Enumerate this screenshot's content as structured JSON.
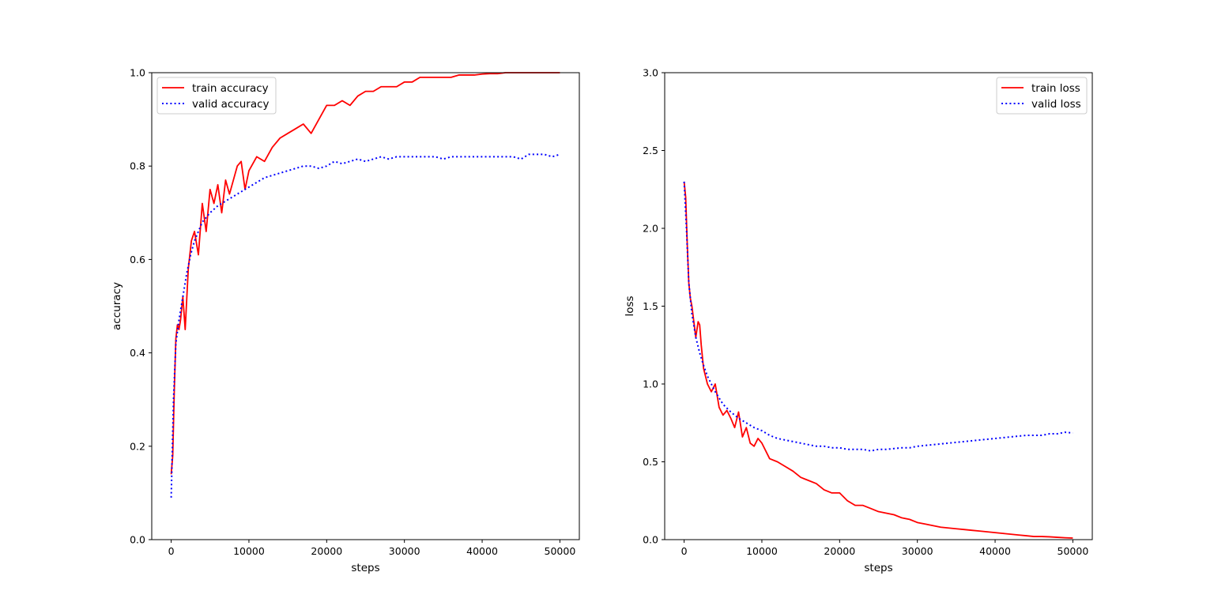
{
  "chart_data": [
    {
      "type": "line",
      "xlabel": "steps",
      "ylabel": "accuracy",
      "xlim": [
        -2500,
        52500
      ],
      "ylim": [
        0,
        1.0
      ],
      "xticks": [
        0,
        10000,
        20000,
        30000,
        40000,
        50000
      ],
      "yticks": [
        0.0,
        0.2,
        0.4,
        0.6,
        0.8,
        1.0
      ],
      "xtick_labels": [
        "0",
        "10000",
        "20000",
        "30000",
        "40000",
        "50000"
      ],
      "ytick_labels": [
        "0.0",
        "0.2",
        "0.4",
        "0.6",
        "0.8",
        "1.0"
      ],
      "legend_position": "top-left",
      "series": [
        {
          "name": "train accuracy",
          "color": "#ff0000",
          "style": "solid",
          "x": [
            0,
            200,
            400,
            600,
            800,
            1000,
            1200,
            1500,
            1800,
            2200,
            2600,
            3000,
            3500,
            4000,
            4500,
            5000,
            5500,
            6000,
            6500,
            7000,
            7500,
            8000,
            8500,
            9000,
            9500,
            10000,
            11000,
            12000,
            13000,
            14000,
            15000,
            16000,
            17000,
            18000,
            19000,
            20000,
            21000,
            22000,
            23000,
            24000,
            25000,
            26000,
            27000,
            28000,
            29000,
            30000,
            31000,
            32000,
            33000,
            34000,
            35000,
            36000,
            37000,
            38000,
            39000,
            40000,
            41000,
            42000,
            43000,
            44000,
            45000,
            46000,
            47000,
            48000,
            49000,
            50000
          ],
          "values": [
            0.14,
            0.18,
            0.32,
            0.43,
            0.46,
            0.45,
            0.47,
            0.52,
            0.45,
            0.58,
            0.64,
            0.66,
            0.61,
            0.72,
            0.66,
            0.75,
            0.72,
            0.76,
            0.7,
            0.77,
            0.74,
            0.77,
            0.8,
            0.81,
            0.75,
            0.79,
            0.82,
            0.81,
            0.84,
            0.86,
            0.87,
            0.88,
            0.89,
            0.87,
            0.9,
            0.93,
            0.93,
            0.94,
            0.93,
            0.95,
            0.96,
            0.96,
            0.97,
            0.97,
            0.97,
            0.98,
            0.98,
            0.99,
            0.99,
            0.99,
            0.99,
            0.99,
            0.995,
            0.995,
            0.995,
            0.997,
            0.998,
            0.998,
            1.0,
            1.0,
            1.0,
            1.0,
            1.0,
            1.0,
            1.0,
            1.0
          ]
        },
        {
          "name": "valid accuracy",
          "color": "#0000ff",
          "style": "dotted",
          "x": [
            0,
            300,
            600,
            1000,
            1500,
            2000,
            2500,
            3000,
            3500,
            4000,
            5000,
            6000,
            7000,
            8000,
            9000,
            10000,
            11000,
            12000,
            13000,
            14000,
            15000,
            16000,
            17000,
            18000,
            19000,
            20000,
            21000,
            22000,
            23000,
            24000,
            25000,
            26000,
            27000,
            28000,
            29000,
            30000,
            32000,
            34000,
            35000,
            36000,
            38000,
            40000,
            42000,
            44000,
            45000,
            46000,
            48000,
            49000,
            50000
          ],
          "values": [
            0.09,
            0.3,
            0.42,
            0.47,
            0.52,
            0.57,
            0.61,
            0.64,
            0.66,
            0.68,
            0.7,
            0.715,
            0.725,
            0.735,
            0.745,
            0.755,
            0.765,
            0.775,
            0.78,
            0.785,
            0.79,
            0.795,
            0.8,
            0.8,
            0.795,
            0.8,
            0.81,
            0.805,
            0.81,
            0.815,
            0.81,
            0.815,
            0.82,
            0.815,
            0.82,
            0.82,
            0.82,
            0.82,
            0.815,
            0.82,
            0.82,
            0.82,
            0.82,
            0.82,
            0.815,
            0.825,
            0.825,
            0.82,
            0.825
          ]
        }
      ]
    },
    {
      "type": "line",
      "xlabel": "steps",
      "ylabel": "loss",
      "xlim": [
        -2500,
        52500
      ],
      "ylim": [
        0,
        3.0
      ],
      "xticks": [
        0,
        10000,
        20000,
        30000,
        40000,
        50000
      ],
      "yticks": [
        0.0,
        0.5,
        1.0,
        1.5,
        2.0,
        2.5,
        3.0
      ],
      "xtick_labels": [
        "0",
        "10000",
        "20000",
        "30000",
        "40000",
        "50000"
      ],
      "ytick_labels": [
        "0.0",
        "0.5",
        "1.0",
        "1.5",
        "2.0",
        "2.5",
        "3.0"
      ],
      "legend_position": "top-right",
      "series": [
        {
          "name": "train loss",
          "color": "#ff0000",
          "style": "solid",
          "x": [
            0,
            200,
            400,
            600,
            800,
            1000,
            1200,
            1500,
            1800,
            2000,
            2200,
            2500,
            3000,
            3500,
            4000,
            4500,
            5000,
            5500,
            6000,
            6500,
            7000,
            7500,
            8000,
            8500,
            9000,
            9500,
            10000,
            11000,
            12000,
            13000,
            14000,
            15000,
            16000,
            17000,
            18000,
            19000,
            20000,
            21000,
            22000,
            23000,
            24000,
            25000,
            26000,
            27000,
            28000,
            29000,
            30000,
            31000,
            32000,
            33000,
            34000,
            35000,
            36000,
            37000,
            38000,
            39000,
            40000,
            41000,
            42000,
            43000,
            44000,
            45000,
            46000,
            47000,
            48000,
            49000,
            50000
          ],
          "values": [
            2.3,
            2.2,
            1.9,
            1.65,
            1.55,
            1.5,
            1.42,
            1.3,
            1.4,
            1.38,
            1.25,
            1.1,
            1.0,
            0.95,
            1.0,
            0.85,
            0.8,
            0.83,
            0.78,
            0.72,
            0.82,
            0.66,
            0.72,
            0.62,
            0.6,
            0.65,
            0.62,
            0.52,
            0.5,
            0.47,
            0.44,
            0.4,
            0.38,
            0.36,
            0.32,
            0.3,
            0.3,
            0.25,
            0.22,
            0.22,
            0.2,
            0.18,
            0.17,
            0.16,
            0.14,
            0.13,
            0.11,
            0.1,
            0.09,
            0.08,
            0.075,
            0.07,
            0.065,
            0.06,
            0.055,
            0.05,
            0.045,
            0.04,
            0.035,
            0.03,
            0.025,
            0.02,
            0.02,
            0.018,
            0.015,
            0.012,
            0.01
          ]
        },
        {
          "name": "valid loss",
          "color": "#0000ff",
          "style": "dotted",
          "x": [
            0,
            300,
            600,
            1000,
            1500,
            2000,
            2500,
            3000,
            4000,
            5000,
            6000,
            7000,
            8000,
            9000,
            10000,
            11000,
            12000,
            13000,
            14000,
            15000,
            16000,
            17000,
            18000,
            19000,
            20000,
            21000,
            22000,
            23000,
            24000,
            25000,
            26000,
            27000,
            28000,
            29000,
            30000,
            32000,
            34000,
            36000,
            38000,
            40000,
            42000,
            44000,
            46000,
            47000,
            48000,
            49000,
            50000
          ],
          "values": [
            2.3,
            2.0,
            1.65,
            1.45,
            1.3,
            1.2,
            1.12,
            1.05,
            0.95,
            0.87,
            0.82,
            0.78,
            0.75,
            0.72,
            0.7,
            0.67,
            0.65,
            0.64,
            0.63,
            0.62,
            0.61,
            0.6,
            0.6,
            0.59,
            0.59,
            0.58,
            0.58,
            0.58,
            0.57,
            0.58,
            0.58,
            0.585,
            0.59,
            0.59,
            0.6,
            0.61,
            0.62,
            0.63,
            0.64,
            0.65,
            0.66,
            0.67,
            0.67,
            0.68,
            0.68,
            0.69,
            0.685
          ]
        }
      ]
    }
  ]
}
